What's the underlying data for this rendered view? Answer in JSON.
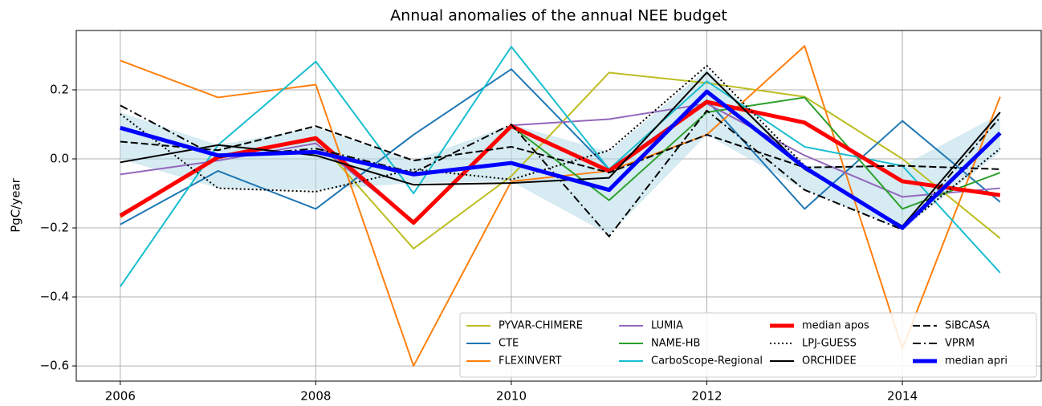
{
  "chart_data": {
    "type": "line",
    "title": "Annual anomalies of the annual NEE budget",
    "y_label": "PgC/year",
    "x": [
      2006,
      2007,
      2008,
      2009,
      2010,
      2011,
      2012,
      2013,
      2014,
      2015
    ],
    "xlim": [
      2005.55,
      2015.42
    ],
    "xticks": [
      2006,
      2008,
      2010,
      2012,
      2014
    ],
    "ylim": [
      -0.644,
      0.372
    ],
    "yticks": [
      {
        "value": -0.6,
        "label": "−0.6"
      },
      {
        "value": -0.4,
        "label": "−0.4"
      },
      {
        "value": -0.2,
        "label": "−0.2"
      },
      {
        "value": 0,
        "label": "0.0"
      },
      0.2
    ],
    "grid": true,
    "legend": "lower right",
    "band": {
      "color": "#add8e6",
      "upper": [
        0.135,
        0.04,
        0.09,
        -0.005,
        0.1,
        0.02,
        0.26,
        -0.02,
        -0.02,
        0.13
      ],
      "lower": [
        0.0,
        -0.085,
        -0.09,
        -0.07,
        -0.065,
        -0.22,
        0.07,
        -0.09,
        -0.205,
        0.02
      ]
    },
    "series": [
      {
        "name": "PYVAR-CHIMERE",
        "color": "#bcbd22",
        "dash": "solid",
        "width": 2,
        "values": [
          -0.17,
          0.01,
          0.06,
          -0.26,
          -0.05,
          0.25,
          0.22,
          0.18,
          0.0,
          -0.23
        ]
      },
      {
        "name": "CTE",
        "color": "#1f77b4",
        "dash": "solid",
        "width": 2,
        "values": [
          -0.19,
          -0.035,
          -0.145,
          0.07,
          0.26,
          -0.03,
          0.17,
          -0.145,
          0.11,
          -0.125
        ]
      },
      {
        "name": "FLEXINVERT",
        "color": "#ff7f0e",
        "dash": "solid",
        "width": 2,
        "values": [
          0.285,
          0.178,
          0.215,
          -0.6,
          -0.065,
          -0.035,
          0.07,
          0.327,
          -0.55,
          0.18
        ]
      },
      {
        "name": "LUMIA",
        "color": "#9467bd",
        "dash": "solid",
        "width": 2,
        "values": [
          -0.045,
          -0.005,
          0.045,
          -0.185,
          0.097,
          0.115,
          0.16,
          0.01,
          -0.11,
          -0.085
        ]
      },
      {
        "name": "NAME-HB",
        "color": "#2ca02c",
        "dash": "solid",
        "width": 2,
        "values": [
          -0.16,
          0.005,
          0.055,
          -0.18,
          0.095,
          -0.12,
          0.135,
          0.178,
          -0.145,
          -0.04
        ]
      },
      {
        "name": "CarboScope-Regional",
        "color": "#17becf",
        "dash": "solid",
        "width": 2,
        "values": [
          -0.37,
          0.04,
          0.282,
          -0.1,
          0.325,
          -0.03,
          0.225,
          0.035,
          -0.02,
          -0.33
        ]
      },
      {
        "name": "median apos",
        "color": "#ff0000",
        "dash": "solid",
        "width": 5,
        "values": [
          -0.165,
          0.005,
          0.06,
          -0.185,
          0.095,
          -0.035,
          0.165,
          0.105,
          -0.065,
          -0.105
        ]
      },
      {
        "name": "LPJ-GUESS",
        "color": "#000000",
        "dash": "dotted",
        "width": 2,
        "values": [
          0.13,
          -0.085,
          -0.095,
          -0.03,
          -0.06,
          0.025,
          0.27,
          -0.02,
          -0.2,
          0.03
        ]
      },
      {
        "name": "ORCHIDEE",
        "color": "#000000",
        "dash": "solid",
        "width": 2,
        "values": [
          -0.01,
          0.04,
          0.01,
          -0.075,
          -0.07,
          -0.055,
          0.25,
          -0.03,
          -0.195,
          0.135
        ]
      },
      {
        "name": "SiBCASA",
        "color": "#000000",
        "dash": "dashed",
        "width": 2,
        "values": [
          0.05,
          0.025,
          0.095,
          -0.005,
          0.035,
          -0.04,
          0.07,
          -0.025,
          -0.02,
          -0.03
        ]
      },
      {
        "name": "VPRM",
        "color": "#000000",
        "dash": "dashdot",
        "width": 2,
        "values": [
          0.155,
          0.005,
          0.03,
          -0.04,
          0.1,
          -0.225,
          0.14,
          -0.09,
          -0.205,
          0.12
        ]
      },
      {
        "name": "median apri",
        "color": "#0000ff",
        "dash": "solid",
        "width": 5,
        "values": [
          0.09,
          0.01,
          0.02,
          -0.045,
          -0.012,
          -0.09,
          0.195,
          -0.025,
          -0.2,
          0.075
        ]
      }
    ]
  }
}
